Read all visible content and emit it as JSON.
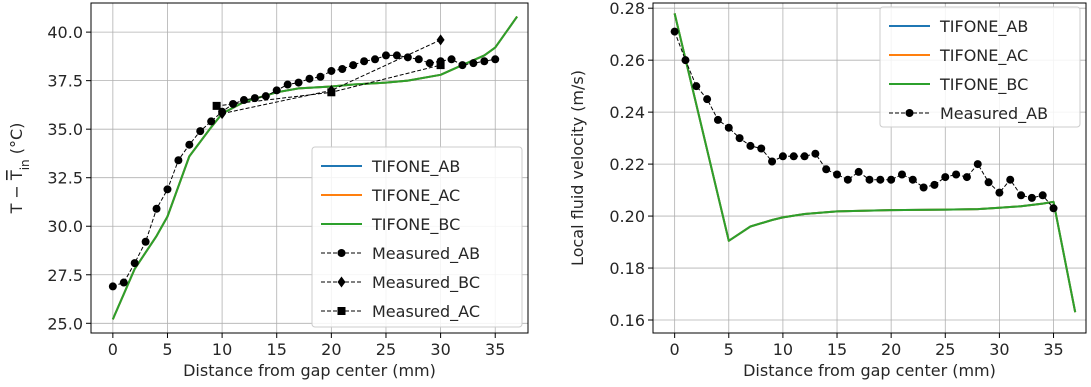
{
  "colors": {
    "tifone_ab": "#1f77b4",
    "tifone_ac": "#ff7f0e",
    "tifone_bc": "#2ca02c",
    "measured": "#000000",
    "grid": "#b0b0b0"
  },
  "chart_data": [
    {
      "type": "line",
      "title": "",
      "xlabel": "Distance from gap center (mm)",
      "ylabel": "T − T̅in (°C)",
      "ylabel_parts": {
        "main": "T − ",
        "overline": "T",
        "subscript": "in",
        "unit": " (°C)"
      },
      "xlim": [
        -2,
        38
      ],
      "ylim": [
        24.5,
        41.5
      ],
      "xticks": [
        0,
        5,
        10,
        15,
        20,
        25,
        30,
        35
      ],
      "yticks": [
        25.0,
        27.5,
        30.0,
        32.5,
        35.0,
        37.5,
        40.0
      ],
      "xtick_labels": [
        "0",
        "5",
        "10",
        "15",
        "20",
        "25",
        "30",
        "35"
      ],
      "ytick_labels": [
        "25.0",
        "27.5",
        "30.0",
        "32.5",
        "35.0",
        "37.5",
        "40.0"
      ],
      "grid": true,
      "legend": "lower-right",
      "series": [
        {
          "name": "TIFONE_AB",
          "style": "solid",
          "color_key": "tifone_ab",
          "x": [
            0,
            2,
            4,
            5,
            7,
            9,
            10,
            12,
            15,
            17,
            20,
            22,
            25,
            27,
            30,
            32,
            34,
            35,
            37
          ],
          "y": [
            25.2,
            27.8,
            29.5,
            30.5,
            33.6,
            35.1,
            35.8,
            36.4,
            36.9,
            37.1,
            37.2,
            37.3,
            37.4,
            37.5,
            37.8,
            38.3,
            38.8,
            39.2,
            40.8
          ]
        },
        {
          "name": "TIFONE_AC",
          "style": "solid",
          "color_key": "tifone_ac",
          "x": [
            0,
            2,
            4,
            5,
            7,
            9,
            10,
            12,
            15,
            17,
            20,
            22,
            25,
            27,
            30,
            32,
            34,
            35,
            37
          ],
          "y": [
            25.2,
            27.8,
            29.5,
            30.5,
            33.6,
            35.1,
            35.8,
            36.4,
            36.9,
            37.1,
            37.2,
            37.3,
            37.4,
            37.5,
            37.8,
            38.3,
            38.8,
            39.2,
            40.8
          ]
        },
        {
          "name": "TIFONE_BC",
          "style": "solid",
          "color_key": "tifone_bc",
          "x": [
            0,
            2,
            4,
            5,
            7,
            9,
            10,
            12,
            15,
            17,
            20,
            22,
            25,
            27,
            30,
            32,
            34,
            35,
            37
          ],
          "y": [
            25.2,
            27.8,
            29.5,
            30.5,
            33.6,
            35.1,
            35.8,
            36.4,
            36.9,
            37.1,
            37.2,
            37.3,
            37.4,
            37.5,
            37.8,
            38.3,
            38.8,
            39.2,
            40.8
          ]
        },
        {
          "name": "Measured_AB",
          "style": "dashed",
          "marker": "circle",
          "color_key": "measured",
          "x": [
            0,
            1,
            2,
            3,
            4,
            5,
            6,
            7,
            8,
            9,
            10,
            11,
            12,
            13,
            14,
            15,
            16,
            17,
            18,
            19,
            20,
            21,
            22,
            23,
            24,
            25,
            26,
            27,
            28,
            29,
            30,
            31,
            32,
            33,
            34,
            35
          ],
          "y": [
            26.9,
            27.1,
            28.1,
            29.2,
            30.9,
            31.9,
            33.4,
            34.2,
            34.9,
            35.4,
            35.9,
            36.3,
            36.5,
            36.6,
            36.7,
            37.0,
            37.3,
            37.4,
            37.6,
            37.7,
            38.0,
            38.1,
            38.3,
            38.5,
            38.6,
            38.8,
            38.8,
            38.7,
            38.6,
            38.4,
            38.5,
            38.6,
            38.3,
            38.4,
            38.5,
            38.6
          ]
        },
        {
          "name": "Measured_BC",
          "style": "dashed",
          "marker": "diamond",
          "color_key": "measured",
          "x": [
            10,
            20,
            30
          ],
          "y": [
            35.8,
            37.0,
            39.6
          ]
        },
        {
          "name": "Measured_AC",
          "style": "dashed",
          "marker": "square",
          "color_key": "measured",
          "x": [
            9.5,
            20,
            30
          ],
          "y": [
            36.2,
            36.9,
            38.3
          ]
        }
      ]
    },
    {
      "type": "line",
      "title": "",
      "xlabel": "Distance from gap center (mm)",
      "ylabel": "Local fluid velocity (m/s)",
      "xlim": [
        -2,
        38
      ],
      "ylim": [
        0.155,
        0.282
      ],
      "xticks": [
        0,
        5,
        10,
        15,
        20,
        25,
        30,
        35
      ],
      "yticks": [
        0.16,
        0.18,
        0.2,
        0.22,
        0.24,
        0.26,
        0.28
      ],
      "xtick_labels": [
        "0",
        "5",
        "10",
        "15",
        "20",
        "25",
        "30",
        "35"
      ],
      "ytick_labels": [
        "0.16",
        "0.18",
        "0.20",
        "0.22",
        "0.24",
        "0.26",
        "0.28"
      ],
      "grid": true,
      "legend": "top-right",
      "series": [
        {
          "name": "TIFONE_AB",
          "style": "solid",
          "color_key": "tifone_ab",
          "x": [
            0,
            5,
            7,
            9,
            10,
            12,
            15,
            20,
            25,
            28,
            30,
            32,
            34,
            35,
            37
          ],
          "y": [
            0.278,
            0.1905,
            0.196,
            0.1985,
            0.1995,
            0.2008,
            0.2018,
            0.2023,
            0.2025,
            0.2027,
            0.2032,
            0.2038,
            0.2048,
            0.2055,
            0.163
          ]
        },
        {
          "name": "TIFONE_AC",
          "style": "solid",
          "color_key": "tifone_ac",
          "x": [
            0,
            5,
            7,
            9,
            10,
            12,
            15,
            20,
            25,
            28,
            30,
            32,
            34,
            35,
            37
          ],
          "y": [
            0.278,
            0.1905,
            0.196,
            0.1985,
            0.1995,
            0.2008,
            0.2018,
            0.2023,
            0.2025,
            0.2027,
            0.2032,
            0.2038,
            0.2048,
            0.2055,
            0.163
          ]
        },
        {
          "name": "TIFONE_BC",
          "style": "solid",
          "color_key": "tifone_bc",
          "x": [
            0,
            5,
            7,
            9,
            10,
            12,
            15,
            20,
            25,
            28,
            30,
            32,
            34,
            35,
            37
          ],
          "y": [
            0.278,
            0.1905,
            0.196,
            0.1985,
            0.1995,
            0.2008,
            0.2018,
            0.2023,
            0.2025,
            0.2027,
            0.2032,
            0.2038,
            0.2048,
            0.2055,
            0.163
          ]
        },
        {
          "name": "Measured_AB",
          "style": "dashed",
          "marker": "circle",
          "color_key": "measured",
          "x": [
            0,
            1,
            2,
            3,
            4,
            5,
            6,
            7,
            8,
            9,
            10,
            11,
            12,
            13,
            14,
            15,
            16,
            17,
            18,
            19,
            20,
            21,
            22,
            23,
            24,
            25,
            26,
            27,
            28,
            29,
            30,
            31,
            32,
            33,
            34,
            35
          ],
          "y": [
            0.271,
            0.26,
            0.25,
            0.245,
            0.237,
            0.234,
            0.23,
            0.227,
            0.226,
            0.221,
            0.223,
            0.223,
            0.223,
            0.224,
            0.218,
            0.216,
            0.214,
            0.217,
            0.214,
            0.214,
            0.214,
            0.216,
            0.214,
            0.211,
            0.212,
            0.215,
            0.216,
            0.215,
            0.22,
            0.213,
            0.209,
            0.214,
            0.208,
            0.207,
            0.208,
            0.203
          ]
        }
      ]
    }
  ]
}
